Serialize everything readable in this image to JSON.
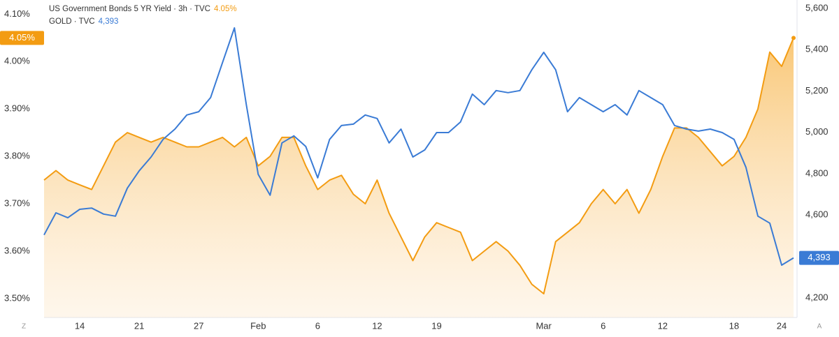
{
  "chart_data": {
    "type": "line",
    "categories": [
      null,
      null,
      null,
      "14",
      null,
      null,
      null,
      null,
      "21",
      null,
      null,
      null,
      null,
      "27",
      null,
      null,
      null,
      null,
      "Feb",
      null,
      null,
      null,
      null,
      "6",
      null,
      null,
      null,
      null,
      "12",
      null,
      null,
      null,
      null,
      "19",
      null,
      null,
      null,
      null,
      null,
      null,
      null,
      null,
      "Mar",
      null,
      null,
      null,
      null,
      "6",
      null,
      null,
      null,
      null,
      "12",
      null,
      null,
      null,
      null,
      null,
      "18",
      null,
      null,
      null,
      "24",
      null
    ],
    "ylim": [
      3.46,
      4.13
    ],
    "yticks": [
      {
        "value": 3.5,
        "label": "3.50%"
      },
      {
        "value": 3.6,
        "label": "3.60%"
      },
      {
        "value": 3.7,
        "label": "3.70%"
      },
      {
        "value": 3.8,
        "label": "3.80%"
      },
      {
        "value": 3.9,
        "label": "3.90%"
      },
      {
        "value": 4.0,
        "label": "4.00%"
      },
      {
        "value": 4.1,
        "label": "4.10%"
      }
    ],
    "y2lim": [
      4105,
      5640
    ],
    "y2ticks": [
      {
        "value": 4200,
        "label": "4,200"
      },
      {
        "value": 4400,
        "label": "4,400"
      },
      {
        "value": 4600,
        "label": "4,600"
      },
      {
        "value": 4800,
        "label": "4,800"
      },
      {
        "value": 5000,
        "label": "5,000"
      },
      {
        "value": 5200,
        "label": "5,200"
      },
      {
        "value": 5400,
        "label": "5,400"
      },
      {
        "value": 5600,
        "label": "5,600"
      }
    ],
    "grid": false,
    "corner_labels": [
      "Z",
      "A"
    ],
    "series": [
      {
        "name": "US Government Bonds 5 YR Yield · 3h · TVC",
        "color": "#f39c12",
        "area": true,
        "last_label": "4.05%",
        "values": [
          3.75,
          3.77,
          3.75,
          3.74,
          3.73,
          3.78,
          3.83,
          3.85,
          3.84,
          3.83,
          3.84,
          3.83,
          3.82,
          3.82,
          3.83,
          3.84,
          3.82,
          3.84,
          3.78,
          3.8,
          3.84,
          3.84,
          3.78,
          3.73,
          3.75,
          3.76,
          3.72,
          3.7,
          3.75,
          3.68,
          3.63,
          3.58,
          3.63,
          3.66,
          3.65,
          3.64,
          3.58,
          3.6,
          3.62,
          3.6,
          3.57,
          3.53,
          3.51,
          3.62,
          3.64,
          3.66,
          3.7,
          3.73,
          3.7,
          3.73,
          3.68,
          3.73,
          3.8,
          3.86,
          3.86,
          3.84,
          3.81,
          3.78,
          3.8,
          3.84,
          3.9,
          4.02,
          3.99,
          4.05
        ]
      },
      {
        "name": "GOLD · TVC",
        "color": "#3a7bd5",
        "axis": "y2",
        "area": false,
        "last_label": "4,393",
        "values": [
          4504,
          4611,
          4587,
          4628,
          4634,
          4605,
          4595,
          4730,
          4814,
          4881,
          4966,
          5016,
          5084,
          5100,
          5168,
          5337,
          5505,
          5134,
          4797,
          4696,
          4949,
          4983,
          4932,
          4780,
          4966,
          5033,
          5040,
          5084,
          5067,
          4949,
          5016,
          4881,
          4915,
          4999,
          4999,
          5050,
          5185,
          5134,
          5202,
          5192,
          5202,
          5303,
          5387,
          5303,
          5100,
          5168,
          5134,
          5100,
          5134,
          5084,
          5202,
          5168,
          5134,
          5033,
          5016,
          5006,
          5016,
          4999,
          4966,
          4831,
          4595,
          4561,
          4358,
          4393
        ]
      }
    ]
  }
}
